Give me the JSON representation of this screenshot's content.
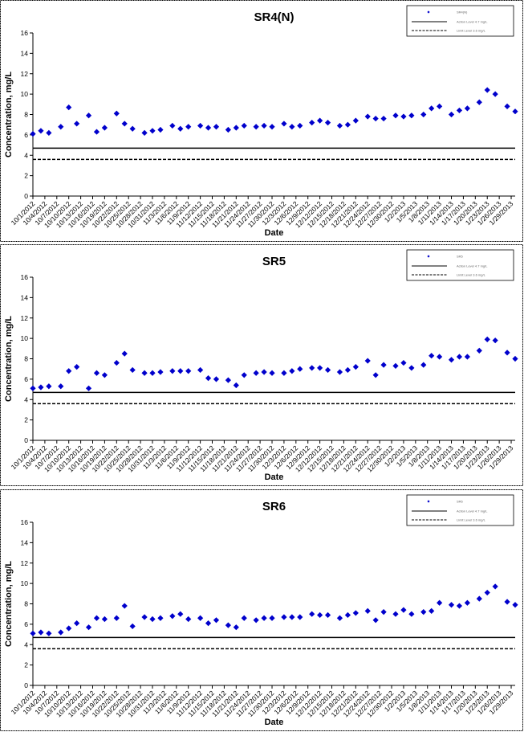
{
  "chart_data": [
    {
      "type": "scatter",
      "title": "SR4(N)",
      "xlabel": "Date",
      "ylabel": "Concentration, mg/L",
      "ylim": [
        0,
        16
      ],
      "yticks": [
        0,
        2,
        4,
        6,
        8,
        10,
        12,
        14,
        16
      ],
      "xlim": [
        "10/1/2012",
        "1/30/2013"
      ],
      "xticks": [
        "10/1/2012",
        "10/4/2012",
        "10/7/2012",
        "10/10/2012",
        "10/13/2012",
        "10/16/2012",
        "10/19/2012",
        "10/22/2012",
        "10/25/2012",
        "10/28/2012",
        "10/31/2012",
        "11/3/2012",
        "11/6/2012",
        "11/9/2012",
        "11/12/2012",
        "11/15/2012",
        "11/18/2012",
        "11/21/2012",
        "11/24/2012",
        "11/27/2012",
        "11/30/2012",
        "12/3/2012",
        "12/6/2012",
        "12/9/2012",
        "12/12/2012",
        "12/15/2012",
        "12/18/2012",
        "12/21/2012",
        "12/24/2012",
        "12/27/2012",
        "12/30/2012",
        "1/2/2013",
        "1/5/2013",
        "1/8/2013",
        "1/11/2013",
        "1/14/2013",
        "1/17/2013",
        "1/20/2013",
        "1/23/2013",
        "1/26/2013",
        "1/29/2013"
      ],
      "grid": false,
      "legend": {
        "position": "top-right",
        "entries": [
          "SR4(N)",
          "Action Level 4.7 mg/L",
          "Limit Level 3.6 mg/L"
        ]
      },
      "thresholds": [
        {
          "name": "Action Level 4.7 mg/L",
          "value": 4.7,
          "style": "solid"
        },
        {
          "name": "Limit Level 3.6 mg/L",
          "value": 3.6,
          "style": "dashed"
        }
      ],
      "series": [
        {
          "name": "SR4(N)",
          "marker": "diamond",
          "color": "#0000cc",
          "points": [
            [
              "10/1/2012",
              6.1
            ],
            [
              "10/3/2012",
              6.4
            ],
            [
              "10/5/2012",
              6.2
            ],
            [
              "10/8/2012",
              6.8
            ],
            [
              "10/10/2012",
              8.7
            ],
            [
              "10/12/2012",
              7.1
            ],
            [
              "10/15/2012",
              7.9
            ],
            [
              "10/17/2012",
              6.3
            ],
            [
              "10/19/2012",
              6.7
            ],
            [
              "10/22/2012",
              8.1
            ],
            [
              "10/24/2012",
              7.1
            ],
            [
              "10/26/2012",
              6.6
            ],
            [
              "10/29/2012",
              6.2
            ],
            [
              "10/31/2012",
              6.4
            ],
            [
              "11/2/2012",
              6.5
            ],
            [
              "11/5/2012",
              6.9
            ],
            [
              "11/7/2012",
              6.6
            ],
            [
              "11/9/2012",
              6.8
            ],
            [
              "11/12/2012",
              6.9
            ],
            [
              "11/14/2012",
              6.7
            ],
            [
              "11/16/2012",
              6.8
            ],
            [
              "11/19/2012",
              6.5
            ],
            [
              "11/21/2012",
              6.7
            ],
            [
              "11/23/2012",
              6.9
            ],
            [
              "11/26/2012",
              6.8
            ],
            [
              "11/28/2012",
              6.9
            ],
            [
              "11/30/2012",
              6.8
            ],
            [
              "12/3/2012",
              7.1
            ],
            [
              "12/5/2012",
              6.8
            ],
            [
              "12/7/2012",
              6.9
            ],
            [
              "12/10/2012",
              7.2
            ],
            [
              "12/12/2012",
              7.4
            ],
            [
              "12/14/2012",
              7.2
            ],
            [
              "12/17/2012",
              6.9
            ],
            [
              "12/19/2012",
              7.0
            ],
            [
              "12/21/2012",
              7.4
            ],
            [
              "12/24/2012",
              7.8
            ],
            [
              "12/26/2012",
              7.6
            ],
            [
              "12/28/2012",
              7.6
            ],
            [
              "12/31/2012",
              7.9
            ],
            [
              "1/2/2013",
              7.8
            ],
            [
              "1/4/2013",
              7.9
            ],
            [
              "1/7/2013",
              8.0
            ],
            [
              "1/9/2013",
              8.6
            ],
            [
              "1/11/2013",
              8.8
            ],
            [
              "1/14/2013",
              8.0
            ],
            [
              "1/16/2013",
              8.4
            ],
            [
              "1/18/2013",
              8.6
            ],
            [
              "1/21/2013",
              9.2
            ],
            [
              "1/23/2013",
              10.4
            ],
            [
              "1/25/2013",
              10.0
            ],
            [
              "1/28/2013",
              8.8
            ],
            [
              "1/30/2013",
              8.3
            ]
          ]
        }
      ]
    },
    {
      "type": "scatter",
      "title": "SR5",
      "xlabel": "Date",
      "ylabel": "Concentration, mg/L",
      "ylim": [
        0,
        16
      ],
      "yticks": [
        0,
        2,
        4,
        6,
        8,
        10,
        12,
        14,
        16
      ],
      "xlim": [
        "10/1/2012",
        "1/30/2013"
      ],
      "xticks": [
        "10/1/2012",
        "10/4/2012",
        "10/7/2012",
        "10/10/2012",
        "10/13/2012",
        "10/16/2012",
        "10/19/2012",
        "10/22/2012",
        "10/25/2012",
        "10/28/2012",
        "10/31/2012",
        "11/3/2012",
        "11/6/2012",
        "11/9/2012",
        "11/12/2012",
        "11/15/2012",
        "11/18/2012",
        "11/21/2012",
        "11/24/2012",
        "11/27/2012",
        "11/30/2012",
        "12/3/2012",
        "12/6/2012",
        "12/9/2012",
        "12/12/2012",
        "12/15/2012",
        "12/18/2012",
        "12/21/2012",
        "12/24/2012",
        "12/27/2012",
        "12/30/2012",
        "1/2/2013",
        "1/5/2013",
        "1/8/2013",
        "1/11/2013",
        "1/14/2013",
        "1/17/2013",
        "1/20/2013",
        "1/23/2013",
        "1/26/2013",
        "1/29/2013"
      ],
      "grid": false,
      "legend": {
        "position": "top-right",
        "entries": [
          "SR5",
          "Action Level 4.7 mg/L",
          "Limit Level 3.6 mg/L"
        ]
      },
      "thresholds": [
        {
          "name": "Action Level 4.7 mg/L",
          "value": 4.7,
          "style": "solid"
        },
        {
          "name": "Limit Level 3.6 mg/L",
          "value": 3.6,
          "style": "dashed"
        }
      ],
      "series": [
        {
          "name": "SR5",
          "marker": "diamond",
          "color": "#0000cc",
          "points": [
            [
              "10/1/2012",
              5.1
            ],
            [
              "10/3/2012",
              5.2
            ],
            [
              "10/5/2012",
              5.3
            ],
            [
              "10/8/2012",
              5.3
            ],
            [
              "10/10/2012",
              6.8
            ],
            [
              "10/12/2012",
              7.2
            ],
            [
              "10/15/2012",
              5.1
            ],
            [
              "10/17/2012",
              6.6
            ],
            [
              "10/19/2012",
              6.4
            ],
            [
              "10/22/2012",
              7.6
            ],
            [
              "10/24/2012",
              8.5
            ],
            [
              "10/26/2012",
              6.9
            ],
            [
              "10/29/2012",
              6.6
            ],
            [
              "10/31/2012",
              6.6
            ],
            [
              "11/2/2012",
              6.7
            ],
            [
              "11/5/2012",
              6.8
            ],
            [
              "11/7/2012",
              6.8
            ],
            [
              "11/9/2012",
              6.8
            ],
            [
              "11/12/2012",
              6.9
            ],
            [
              "11/14/2012",
              6.1
            ],
            [
              "11/16/2012",
              6.0
            ],
            [
              "11/19/2012",
              5.9
            ],
            [
              "11/21/2012",
              5.4
            ],
            [
              "11/23/2012",
              6.4
            ],
            [
              "11/26/2012",
              6.6
            ],
            [
              "11/28/2012",
              6.7
            ],
            [
              "11/30/2012",
              6.6
            ],
            [
              "12/3/2012",
              6.6
            ],
            [
              "12/5/2012",
              6.8
            ],
            [
              "12/7/2012",
              7.0
            ],
            [
              "12/10/2012",
              7.1
            ],
            [
              "12/12/2012",
              7.1
            ],
            [
              "12/14/2012",
              6.9
            ],
            [
              "12/17/2012",
              6.7
            ],
            [
              "12/19/2012",
              6.9
            ],
            [
              "12/21/2012",
              7.2
            ],
            [
              "12/24/2012",
              7.8
            ],
            [
              "12/26/2012",
              6.4
            ],
            [
              "12/28/2012",
              7.4
            ],
            [
              "12/31/2012",
              7.3
            ],
            [
              "1/2/2013",
              7.6
            ],
            [
              "1/4/2013",
              7.1
            ],
            [
              "1/7/2013",
              7.4
            ],
            [
              "1/9/2013",
              8.3
            ],
            [
              "1/11/2013",
              8.2
            ],
            [
              "1/14/2013",
              7.9
            ],
            [
              "1/16/2013",
              8.2
            ],
            [
              "1/18/2013",
              8.2
            ],
            [
              "1/21/2013",
              8.8
            ],
            [
              "1/23/2013",
              9.9
            ],
            [
              "1/25/2013",
              9.8
            ],
            [
              "1/28/2013",
              8.6
            ],
            [
              "1/30/2013",
              8.0
            ]
          ]
        }
      ]
    },
    {
      "type": "scatter",
      "title": "SR6",
      "xlabel": "Date",
      "ylabel": "Concentration, mg/L",
      "ylim": [
        0,
        16
      ],
      "yticks": [
        0,
        2,
        4,
        6,
        8,
        10,
        12,
        14,
        16
      ],
      "xlim": [
        "10/1/2012",
        "1/30/2013"
      ],
      "xticks": [
        "10/1/2012",
        "10/4/2012",
        "10/7/2012",
        "10/10/2012",
        "10/13/2012",
        "10/16/2012",
        "10/19/2012",
        "10/22/2012",
        "10/25/2012",
        "10/28/2012",
        "10/31/2012",
        "11/3/2012",
        "11/6/2012",
        "11/9/2012",
        "11/12/2012",
        "11/15/2012",
        "11/18/2012",
        "11/21/2012",
        "11/24/2012",
        "11/27/2012",
        "11/30/2012",
        "12/3/2012",
        "12/6/2012",
        "12/9/2012",
        "12/12/2012",
        "12/15/2012",
        "12/18/2012",
        "12/21/2012",
        "12/24/2012",
        "12/27/2012",
        "12/30/2012",
        "1/2/2013",
        "1/5/2013",
        "1/8/2013",
        "1/11/2013",
        "1/14/2013",
        "1/17/2013",
        "1/20/2013",
        "1/23/2013",
        "1/26/2013",
        "1/29/2013"
      ],
      "grid": false,
      "legend": {
        "position": "top-right",
        "entries": [
          "SR6",
          "Action Level 4.7 mg/L",
          "Limit Level 3.6 mg/L"
        ]
      },
      "thresholds": [
        {
          "name": "Action Level 4.7 mg/L",
          "value": 4.7,
          "style": "solid"
        },
        {
          "name": "Limit Level 3.6 mg/L",
          "value": 3.6,
          "style": "dashed"
        }
      ],
      "series": [
        {
          "name": "SR6",
          "marker": "diamond",
          "color": "#0000cc",
          "points": [
            [
              "10/1/2012",
              5.1
            ],
            [
              "10/3/2012",
              5.2
            ],
            [
              "10/5/2012",
              5.1
            ],
            [
              "10/8/2012",
              5.2
            ],
            [
              "10/10/2012",
              5.6
            ],
            [
              "10/12/2012",
              6.1
            ],
            [
              "10/15/2012",
              5.7
            ],
            [
              "10/17/2012",
              6.6
            ],
            [
              "10/19/2012",
              6.5
            ],
            [
              "10/22/2012",
              6.6
            ],
            [
              "10/24/2012",
              7.8
            ],
            [
              "10/26/2012",
              5.8
            ],
            [
              "10/29/2012",
              6.7
            ],
            [
              "10/31/2012",
              6.5
            ],
            [
              "11/2/2012",
              6.6
            ],
            [
              "11/5/2012",
              6.8
            ],
            [
              "11/7/2012",
              7.0
            ],
            [
              "11/9/2012",
              6.5
            ],
            [
              "11/12/2012",
              6.6
            ],
            [
              "11/14/2012",
              6.1
            ],
            [
              "11/16/2012",
              6.4
            ],
            [
              "11/19/2012",
              5.9
            ],
            [
              "11/21/2012",
              5.7
            ],
            [
              "11/23/2012",
              6.6
            ],
            [
              "11/26/2012",
              6.4
            ],
            [
              "11/28/2012",
              6.6
            ],
            [
              "11/30/2012",
              6.6
            ],
            [
              "12/3/2012",
              6.7
            ],
            [
              "12/5/2012",
              6.7
            ],
            [
              "12/7/2012",
              6.7
            ],
            [
              "12/10/2012",
              7.0
            ],
            [
              "12/12/2012",
              6.9
            ],
            [
              "12/14/2012",
              6.9
            ],
            [
              "12/17/2012",
              6.6
            ],
            [
              "12/19/2012",
              6.9
            ],
            [
              "12/21/2012",
              7.1
            ],
            [
              "12/24/2012",
              7.3
            ],
            [
              "12/26/2012",
              6.4
            ],
            [
              "12/28/2012",
              7.2
            ],
            [
              "12/31/2012",
              7.0
            ],
            [
              "1/2/2013",
              7.4
            ],
            [
              "1/4/2013",
              7.0
            ],
            [
              "1/7/2013",
              7.2
            ],
            [
              "1/9/2013",
              7.3
            ],
            [
              "1/11/2013",
              8.1
            ],
            [
              "1/14/2013",
              7.9
            ],
            [
              "1/16/2013",
              7.8
            ],
            [
              "1/18/2013",
              8.1
            ],
            [
              "1/21/2013",
              8.5
            ],
            [
              "1/23/2013",
              9.1
            ],
            [
              "1/25/2013",
              9.7
            ],
            [
              "1/28/2013",
              8.2
            ],
            [
              "1/30/2013",
              7.9
            ]
          ]
        }
      ]
    }
  ]
}
